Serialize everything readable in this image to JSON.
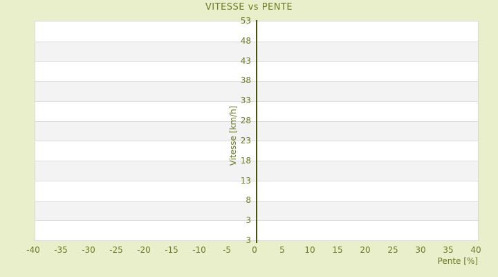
{
  "chart_data": {
    "type": "line",
    "title": "VITESSE vs PENTE",
    "xlabel": "Pente [%]",
    "ylabel": "Vitesse [km/h]",
    "x_tick_labels": [
      "-40",
      "-35",
      "-30",
      "-25",
      "-20",
      "-15",
      "-10",
      "-5",
      "0",
      "5",
      "10",
      "15",
      "20",
      "25",
      "30",
      "35",
      "40"
    ],
    "y_tick_labels_top_to_bottom": [
      "53",
      "48",
      "43",
      "38",
      "33",
      "28",
      "23",
      "18",
      "13",
      "8",
      "3",
      "3"
    ],
    "xlim": [
      -40,
      40
    ],
    "ylim": [
      -2,
      53
    ],
    "series": [],
    "grid": "alternating-horizontal-bands",
    "legend_position": "none",
    "axis_line_at_x": 0
  },
  "colors": {
    "page_bg": "#e9efca",
    "text_olive": "#6d7924",
    "axis_line": "#4b530f",
    "plot_bg": "#ffffff",
    "band_gray": "#f3f3f3",
    "band_sep": "#dcdcdc",
    "plot_border": "#d9d9d9"
  }
}
